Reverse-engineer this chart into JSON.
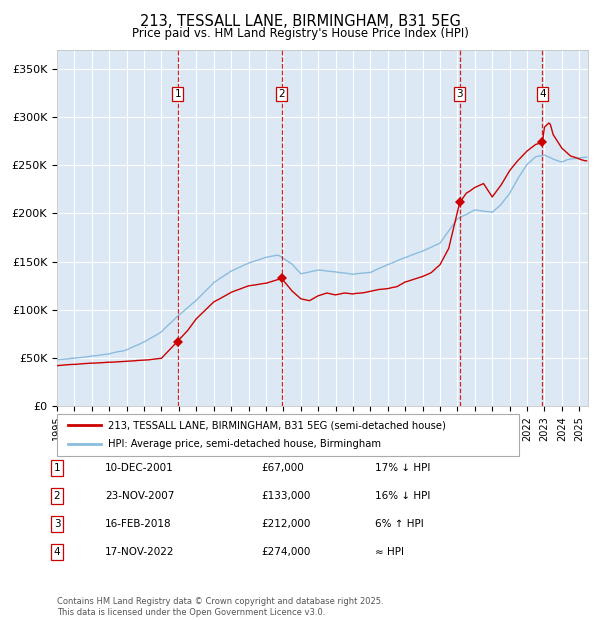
{
  "title_line1": "213, TESSALL LANE, BIRMINGHAM, B31 5EG",
  "title_line2": "Price paid vs. HM Land Registry's House Price Index (HPI)",
  "ylim": [
    0,
    370000
  ],
  "yticks": [
    0,
    50000,
    100000,
    150000,
    200000,
    250000,
    300000,
    350000
  ],
  "ytick_labels": [
    "£0",
    "£50K",
    "£100K",
    "£150K",
    "£200K",
    "£250K",
    "£300K",
    "£350K"
  ],
  "plot_bg_color": "#dce9f5",
  "grid_color": "#ffffff",
  "hpi_color": "#8bbcdf",
  "price_color": "#cc0000",
  "vline_color": "#cc0000",
  "transactions": [
    {
      "num": 1,
      "date": "10-DEC-2001",
      "x_year": 2001.94,
      "price": 67000,
      "pct": "17% ↓ HPI"
    },
    {
      "num": 2,
      "date": "23-NOV-2007",
      "x_year": 2007.9,
      "price": 133000,
      "pct": "16% ↓ HPI"
    },
    {
      "num": 3,
      "date": "16-FEB-2018",
      "x_year": 2018.12,
      "price": 212000,
      "pct": "6% ↑ HPI"
    },
    {
      "num": 4,
      "date": "17-NOV-2022",
      "x_year": 2022.88,
      "price": 274000,
      "pct": "≈ HPI"
    }
  ],
  "legend_label1": "213, TESSALL LANE, BIRMINGHAM, B31 5EG (semi-detached house)",
  "legend_label2": "HPI: Average price, semi-detached house, Birmingham",
  "footer": "Contains HM Land Registry data © Crown copyright and database right 2025.\nThis data is licensed under the Open Government Licence v3.0.",
  "xlim_start": 1995.0,
  "xlim_end": 2025.5,
  "xtick_years": [
    1995,
    1996,
    1997,
    1998,
    1999,
    2000,
    2001,
    2002,
    2003,
    2004,
    2005,
    2006,
    2007,
    2008,
    2009,
    2010,
    2011,
    2012,
    2013,
    2014,
    2015,
    2016,
    2017,
    2018,
    2019,
    2020,
    2021,
    2022,
    2023,
    2024,
    2025
  ]
}
